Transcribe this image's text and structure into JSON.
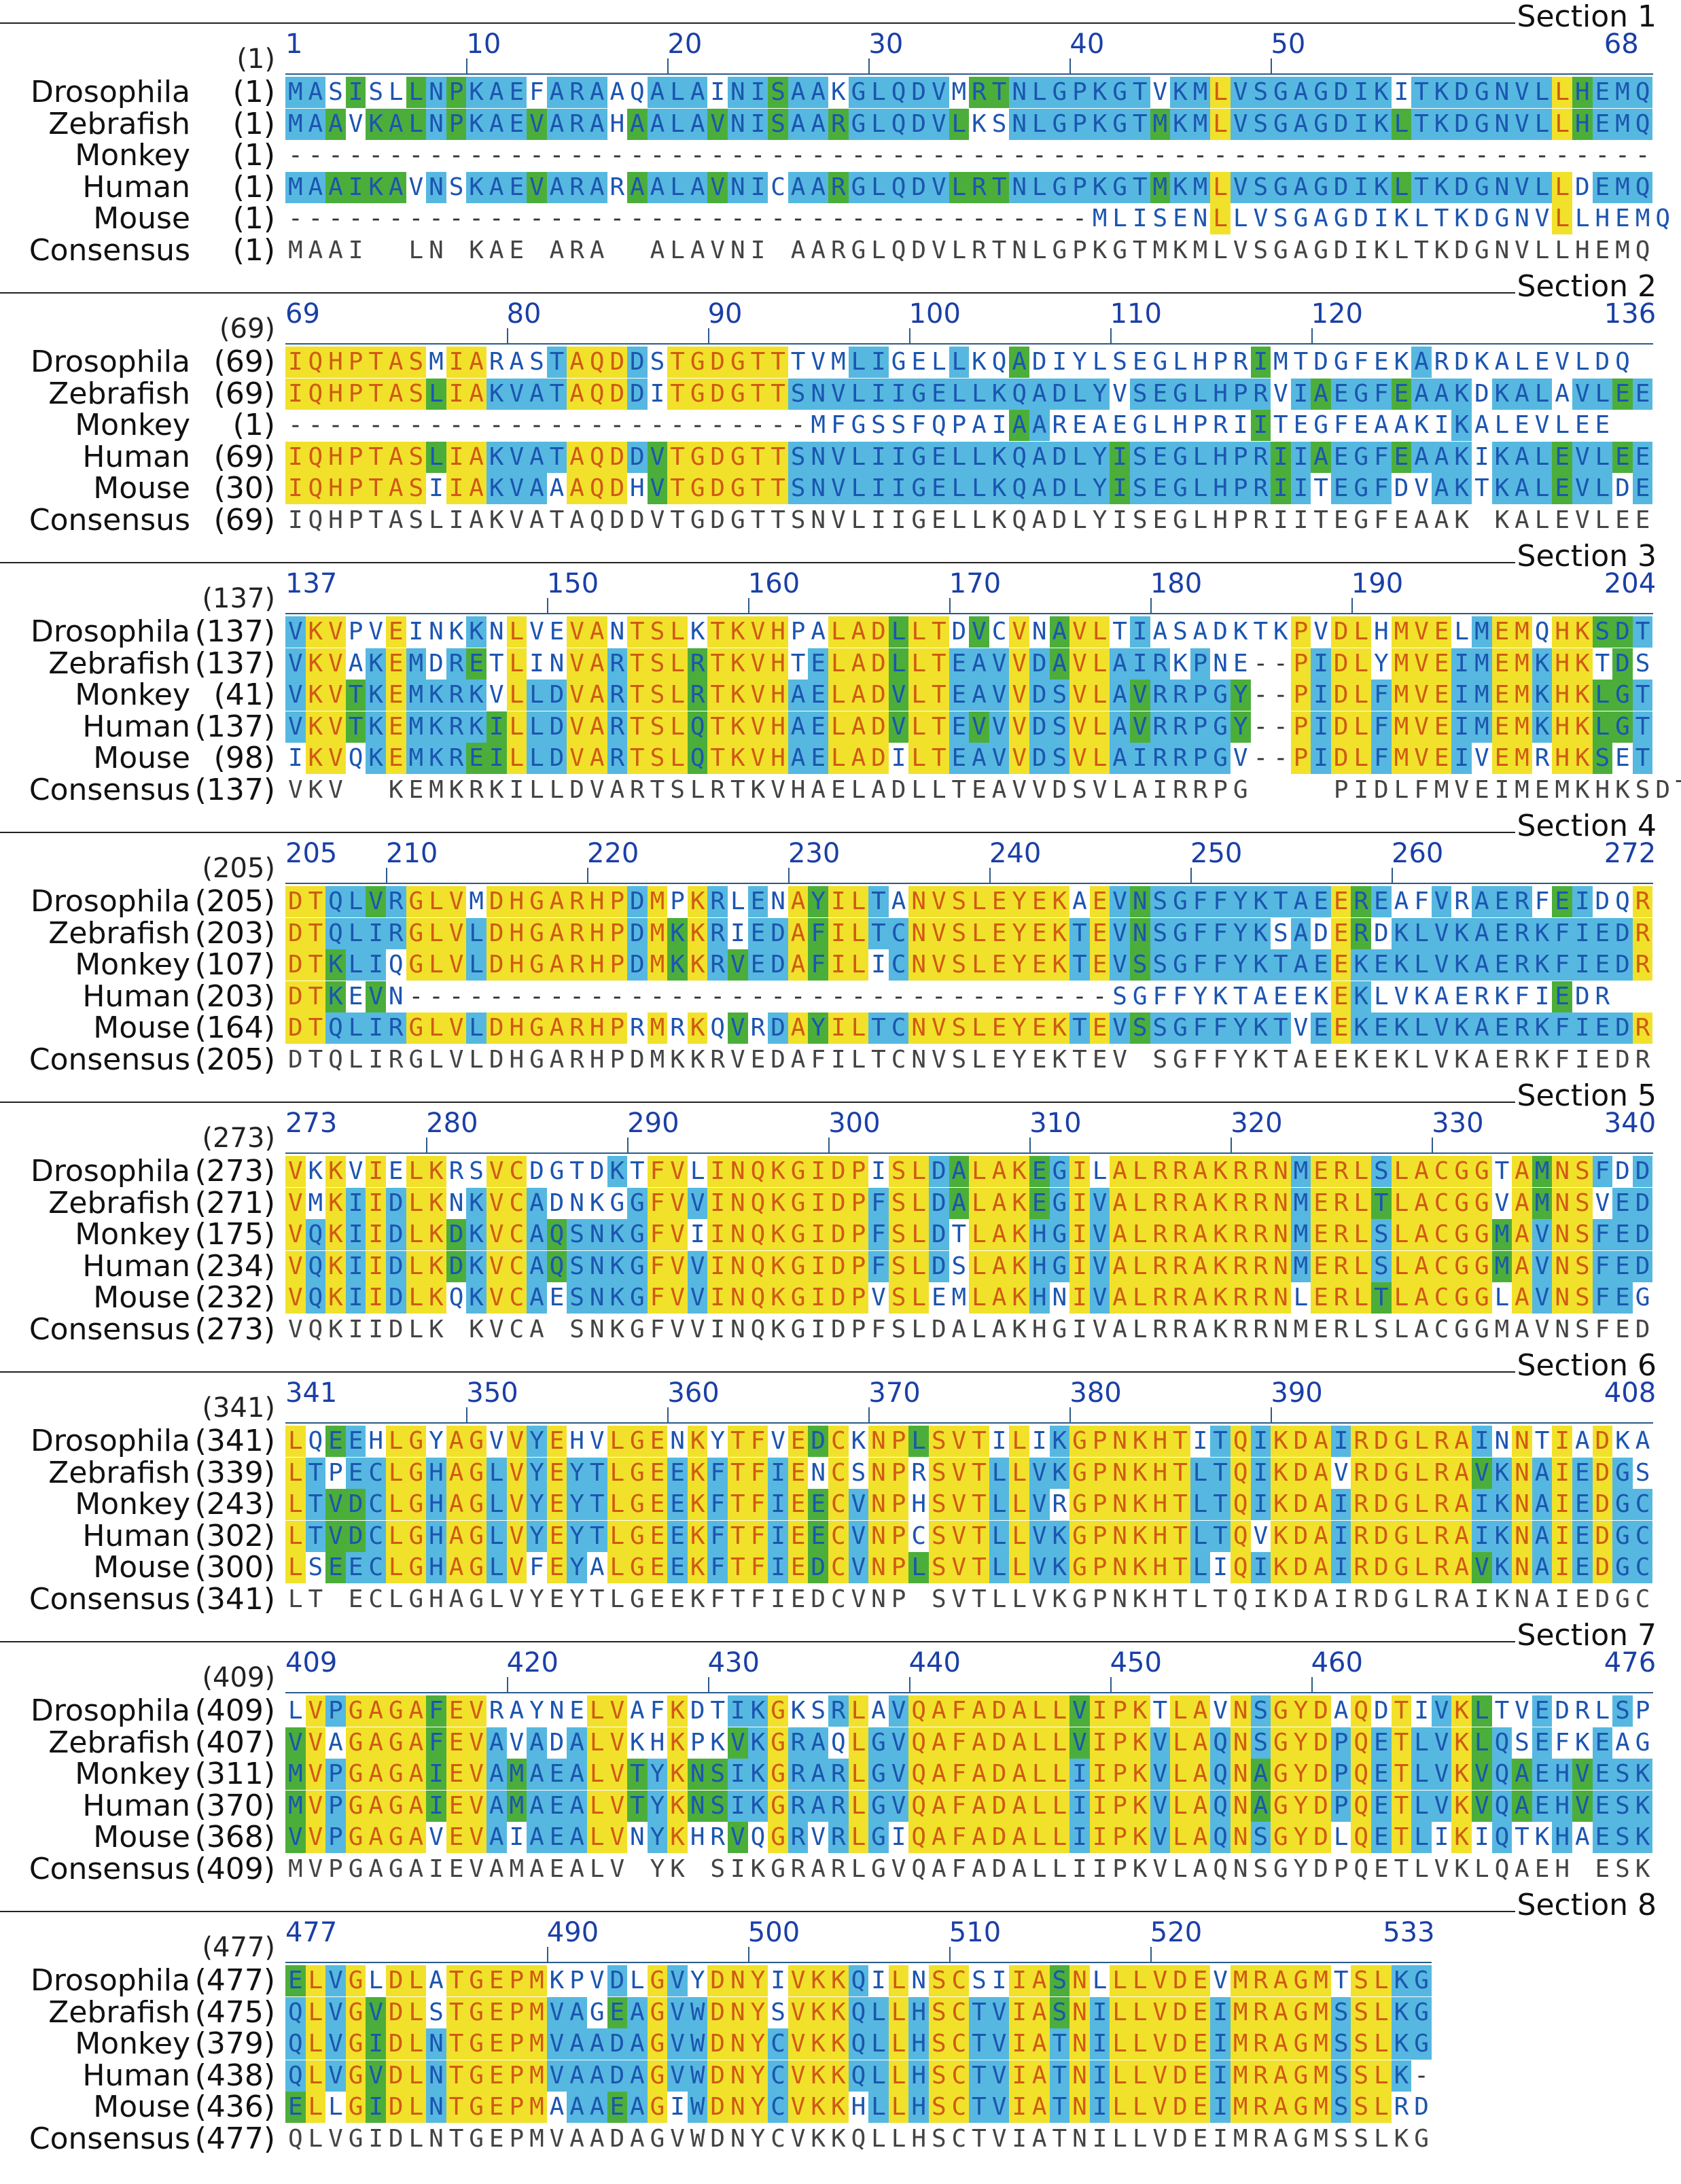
{
  "alignment": {
    "sections": [
      {
        "title": "Section 1",
        "ruler_start": "(1)",
        "ticks": [
          "1",
          "10",
          "20",
          "30",
          "40",
          "50",
          "68"
        ],
        "rows": [
          {
            "name": "Drosophila",
            "pos": "(1)",
            "seq": "MASISLLNPKAEFARAAQALAINISAAKGLQDVMRTNLGPKGTVKMLVSGAGDIKITKDGNVLLHEMQ"
          },
          {
            "name": "Zebrafish",
            "pos": "(1)",
            "seq": "MAAVKALNPKAEVARAHAALAVNISAARGLQDVLKSNLGPKGTMKMLVSGAGDIKLTKDGNVLLHEMQ"
          },
          {
            "name": "Monkey",
            "pos": "(1)",
            "seq": "--------------------------------------------------------------------"
          },
          {
            "name": "Human",
            "pos": "(1)",
            "seq": "MAAIKAVNSKAEVARARAALAVNICAARGLQDVLRTNLGPKGTMKMLVSGAGDIKLTKDGNVLLDEMQ"
          },
          {
            "name": "Mouse",
            "pos": "(1)",
            "seq": "----------------------------------------MLISENLLVSGAGDIKLTKDGNVLLHEMQ"
          },
          {
            "name": "Consensus",
            "pos": "(1)",
            "seq": "MAAI  LN KAE ARA  ALAVNI AARGLQDVLRTNLGPKGTMKMLVSGAGDIKLTKDGNVLLHEMQ"
          }
        ]
      },
      {
        "title": "Section 2",
        "ruler_start": "(69)",
        "ticks": [
          "69",
          "80",
          "90",
          "100",
          "110",
          "120",
          "136"
        ],
        "rows": [
          {
            "name": "Drosophila",
            "pos": "(69)",
            "seq": "IQHPTASMIARASTAQDDSTGDGTTTVMLIGELLKQADIYLSEGLHPRIMTDGFEKARDKALEVLDQ"
          },
          {
            "name": "Zebrafish",
            "pos": "(69)",
            "seq": "IQHPTASLIAKVATAQDDITGDGTTSNVLIIGELLKQADLYVSEGLHPRVIAEGFEAAKDKALAVLEE"
          },
          {
            "name": "Monkey",
            "pos": "(1)",
            "seq": "--------------------------MFGSSFQPAIAAREAEGLHPRIITEGFEAAKIKALEVLEE"
          },
          {
            "name": "Human",
            "pos": "(69)",
            "seq": "IQHPTASLIAKVATAQDDVTGDGTTSNVLIIGELLKQADLYISEGLHPRIIAEGFEAAKIKALEVLEE"
          },
          {
            "name": "Mouse",
            "pos": "(30)",
            "seq": "IQHPTASIIAKVAAAQDHVTGDGTTSNVLIIGELLKQADLYISEGLHPRIITEGFDVAKTKALEVLDE"
          },
          {
            "name": "Consensus",
            "pos": "(69)",
            "seq": "IQHPTASLIAKVATAQDDVTGDGTTSNVLIIGELLKQADLYISEGLHPRIITEGFEAAK KALEVLEE"
          }
        ]
      },
      {
        "title": "Section 3",
        "ruler_start": "(137)",
        "ticks": [
          "137",
          "150",
          "160",
          "170",
          "180",
          "190",
          "204"
        ],
        "rows": [
          {
            "name": "Drosophila",
            "pos": "(137)",
            "seq": "VKVPVEINKKNLVEVANTSLKTKVHPALADLLTDVCVNAVLTIASADKTKPVDLHMVELMEMQHKSDT"
          },
          {
            "name": "Zebrafish",
            "pos": "(137)",
            "seq": "VKVAKEMDRETLINVARTSLRTKVHTELADLLTEAVVDAVLAIRKPNE--PIDLYMVEIMEMKHKTDS"
          },
          {
            "name": "Monkey",
            "pos": "(41)",
            "seq": "VKVTKEMKRKVLLDVARTSLRTKVHAELADVLTEAVVDSVLAVRRPGY--PIDLFMVEIMEMKHKLGT"
          },
          {
            "name": "Human",
            "pos": "(137)",
            "seq": "VKVTKEMKRKILLDVARTSLQTKVHAELADVLTEVVVDSVLAVRRPGY--PIDLFMVEIMEMKHKLGT"
          },
          {
            "name": "Mouse",
            "pos": "(98)",
            "seq": "IKVQKEMKREILLDVARTSLQTKVHAELADILTEAVVDSVLAIRRPGV--PIDLFMVEIVEMRHKSET"
          },
          {
            "name": "Consensus",
            "pos": "(137)",
            "seq": "VKV  KEMKRKILLDVARTSLRTKVHAELADLLTEAVVDSVLAIRRPG    PIDLFMVEIMEMKHKSDT"
          }
        ]
      },
      {
        "title": "Section 4",
        "ruler_start": "(205)",
        "ticks": [
          "205",
          "210",
          "220",
          "230",
          "240",
          "250",
          "260",
          "272"
        ],
        "rows": [
          {
            "name": "Drosophila",
            "pos": "(205)",
            "seq": "DTQLVRGLVMDHGARHPDMPKRLENAYILTANVSLEYEKAEVNSGFFYKTAEEREAFVRAERFEIDQR"
          },
          {
            "name": "Zebrafish",
            "pos": "(203)",
            "seq": "DTQLIRGLVLDHGARHPDMKKRIEDAFILTCNVSLEYEKTEVNSGFFYKSADERDKLVKAERKFIEDR"
          },
          {
            "name": "Monkey",
            "pos": "(107)",
            "seq": "DTKLIQGLVLDHGARHPDMKKRVEDAFILICNVSLEYEKTEVSSGFFYKTAEEKEKLVKAERKFIEDR"
          },
          {
            "name": "Human",
            "pos": "(203)",
            "seq": "DTKEVN-----------------------------------SGFFYKTAEEKEKLVKAERKFIEDR"
          },
          {
            "name": "Mouse",
            "pos": "(164)",
            "seq": "DTQLIRGLVLDHGARHPRMRKQVRDAYILTCNVSLEYEKTEVSSGFFYKTVEEKEKLVKAERKFIEDR"
          },
          {
            "name": "Consensus",
            "pos": "(205)",
            "seq": "DTQLIRGLVLDHGARHPDMKKRVEDAFILTCNVSLEYEKTEV SGFFYKTAEEKEKLVKAERKFIEDR"
          }
        ]
      },
      {
        "title": "Section 5",
        "ruler_start": "(273)",
        "ticks": [
          "273",
          "280",
          "290",
          "300",
          "310",
          "320",
          "330",
          "340"
        ],
        "rows": [
          {
            "name": "Drosophila",
            "pos": "(273)",
            "seq": "VKKVIELKRSVCDGTDKTFVLINQKGIDPISLDALAKEGILALRRAKRRNMERLSLACGGTAMNSFDD"
          },
          {
            "name": "Zebrafish",
            "pos": "(271)",
            "seq": "VMKIIDLKNKVCADNKGGFVVINQKGIDPFSLDALAKEGIVALRRAKRRNMERLTLACGGVAMNSVED"
          },
          {
            "name": "Monkey",
            "pos": "(175)",
            "seq": "VQKIIDLKDKVCAQSNKGFVIINQKGIDPFSLDTLAKHGIVALRRAKRRNMERLSLACGGMAVNSFED"
          },
          {
            "name": "Human",
            "pos": "(234)",
            "seq": "VQKIIDLKDKVCAQSNKGFVVINQKGIDPFSLDSLAKHGIVALRRAKRRNMERLSLACGGMAVNSFED"
          },
          {
            "name": "Mouse",
            "pos": "(232)",
            "seq": "VQKIIDLKQKVCAESNKGFVVINQKGIDPVSLEMLAKHNIVALRRAKRRNLERLTLACGGLAVNSFEG"
          },
          {
            "name": "Consensus",
            "pos": "(273)",
            "seq": "VQKIIDLK KVCA SNKGFVVINQKGIDPFSLDALAKHGIVALRRAKRRNMERLSLACGGMAVNSFED"
          }
        ]
      },
      {
        "title": "Section 6",
        "ruler_start": "(341)",
        "ticks": [
          "341",
          "350",
          "360",
          "370",
          "380",
          "390",
          "408"
        ],
        "rows": [
          {
            "name": "Drosophila",
            "pos": "(341)",
            "seq": "LQEEHLGYAGVVYEHVLGENKYTFVEDCKNPLSVTILIKGPNKHTITQIKDAIRDGLRAINNTIADKA"
          },
          {
            "name": "Zebrafish",
            "pos": "(339)",
            "seq": "LTPECLGHAGLVYEYTLGEEKFTFIENCSNPRSVTLLVKGPNKHTLTQIKDAVRDGLRAVKNAIEDGS"
          },
          {
            "name": "Monkey",
            "pos": "(243)",
            "seq": "LTVDCLGHAGLVYEYTLGEEKFTFIEECVNPHSVTLLVRGPNKHTLTQIKDAIRDGLRAIKNAIEDGC"
          },
          {
            "name": "Human",
            "pos": "(302)",
            "seq": "LTVDCLGHAGLVYEYTLGEEKFTFIEECVNPCSVTLLVKGPNKHTLTQVKDAIRDGLRAIKNAIEDGC"
          },
          {
            "name": "Mouse",
            "pos": "(300)",
            "seq": "LSEECLGHAGLVFEYALGEEKFTFIEDCVNPLSVTLLVKGPNKHTLIQIKDAIRDGLRAVKNAIEDGC"
          },
          {
            "name": "Consensus",
            "pos": "(341)",
            "seq": "LT ECLGHAGLVYEYTLGEEKFTFIEDCVNP SVTLLVKGPNKHTLTQIKDAIRDGLRAIKNAIEDGC"
          }
        ]
      },
      {
        "title": "Section 7",
        "ruler_start": "(409)",
        "ticks": [
          "409",
          "420",
          "430",
          "440",
          "450",
          "460",
          "476"
        ],
        "rows": [
          {
            "name": "Drosophila",
            "pos": "(409)",
            "seq": "LVPGAGAFEVRAYNELVAFKDTIKGKSRLAVQAFADALLVIPKTLAVNSGYDAQDTIVKLTVEDRLSP"
          },
          {
            "name": "Zebrafish",
            "pos": "(407)",
            "seq": "VVAGAGAFEVAVADALVKHKPKVKGRAQLGVQAFADALLVIPKVLAQNSGYDPQETLVKLQSEFKEAG"
          },
          {
            "name": "Monkey",
            "pos": "(311)",
            "seq": "MVPGAGAIEVAMAEALVTYKNSIKGRARLGVQAFADALLIIPKVLAQNAGYDPQETLVKVQAEHVESK"
          },
          {
            "name": "Human",
            "pos": "(370)",
            "seq": "MVPGAGAIEVAMAEALVTYKNSIKGRARLGVQAFADALLIIPKVLAQNAGYDPQETLVKVQAEHVESK"
          },
          {
            "name": "Mouse",
            "pos": "(368)",
            "seq": "VVPGAGAVEVAIAEALVNYKHRVQGRVRLGIQAFADALLIIPKVLAQNSGYDLQETLIKIQTKHAESK"
          },
          {
            "name": "Consensus",
            "pos": "(409)",
            "seq": "MVPGAGAIEVAMAEALV YK SIKGRARLGVQAFADALLIIPKVLAQNSGYDPQETLVKLQAEH ESK"
          }
        ]
      },
      {
        "title": "Section 8",
        "ruler_start": "(477)",
        "ticks": [
          "477",
          "490",
          "500",
          "510",
          "520",
          "533"
        ],
        "rows": [
          {
            "name": "Drosophila",
            "pos": "(477)",
            "seq": "ELVGLDLATGEPMKPVDLGVYDNYIVKKQILNSCSIIASNLLLVDEVMRAGMTSLKG"
          },
          {
            "name": "Zebrafish",
            "pos": "(475)",
            "seq": "QLVGVDLSTGEPMVAGEAGVWDNYSVKKQLLHSCTVIASNILLVDEIMRAGMSSLKG"
          },
          {
            "name": "Monkey",
            "pos": "(379)",
            "seq": "QLVGIDLNTGEPMVAADAGVWDNYCVKKQLLHSCTVIATNILLVDEIMRAGMSSLKG"
          },
          {
            "name": "Human",
            "pos": "(438)",
            "seq": "QLVGVDLNTGEPMVAADAGVWDNYCVKKQLLHSCTVIATNILLVDEIMRAGMSSLK-"
          },
          {
            "name": "Mouse",
            "pos": "(436)",
            "seq": "ELLGIDLNTGEPMAAAEAGIWDNYCVKKHLLHSCTVIATNILLVDEIMRAGMSSLRD"
          },
          {
            "name": "Consensus",
            "pos": "(477)",
            "seq": "QLVGIDLNTGEPMVAADAGVWDNYCVKKQLLHSCTVIATNILLVDEIMRAGMSSLKG"
          }
        ]
      }
    ],
    "colors": {
      "identical": "#f2e12a",
      "conserved": "#56b8e0",
      "similar": "#4cae3a",
      "text_yellow": "#d05a14",
      "text_blue": "#1c55b0"
    }
  }
}
